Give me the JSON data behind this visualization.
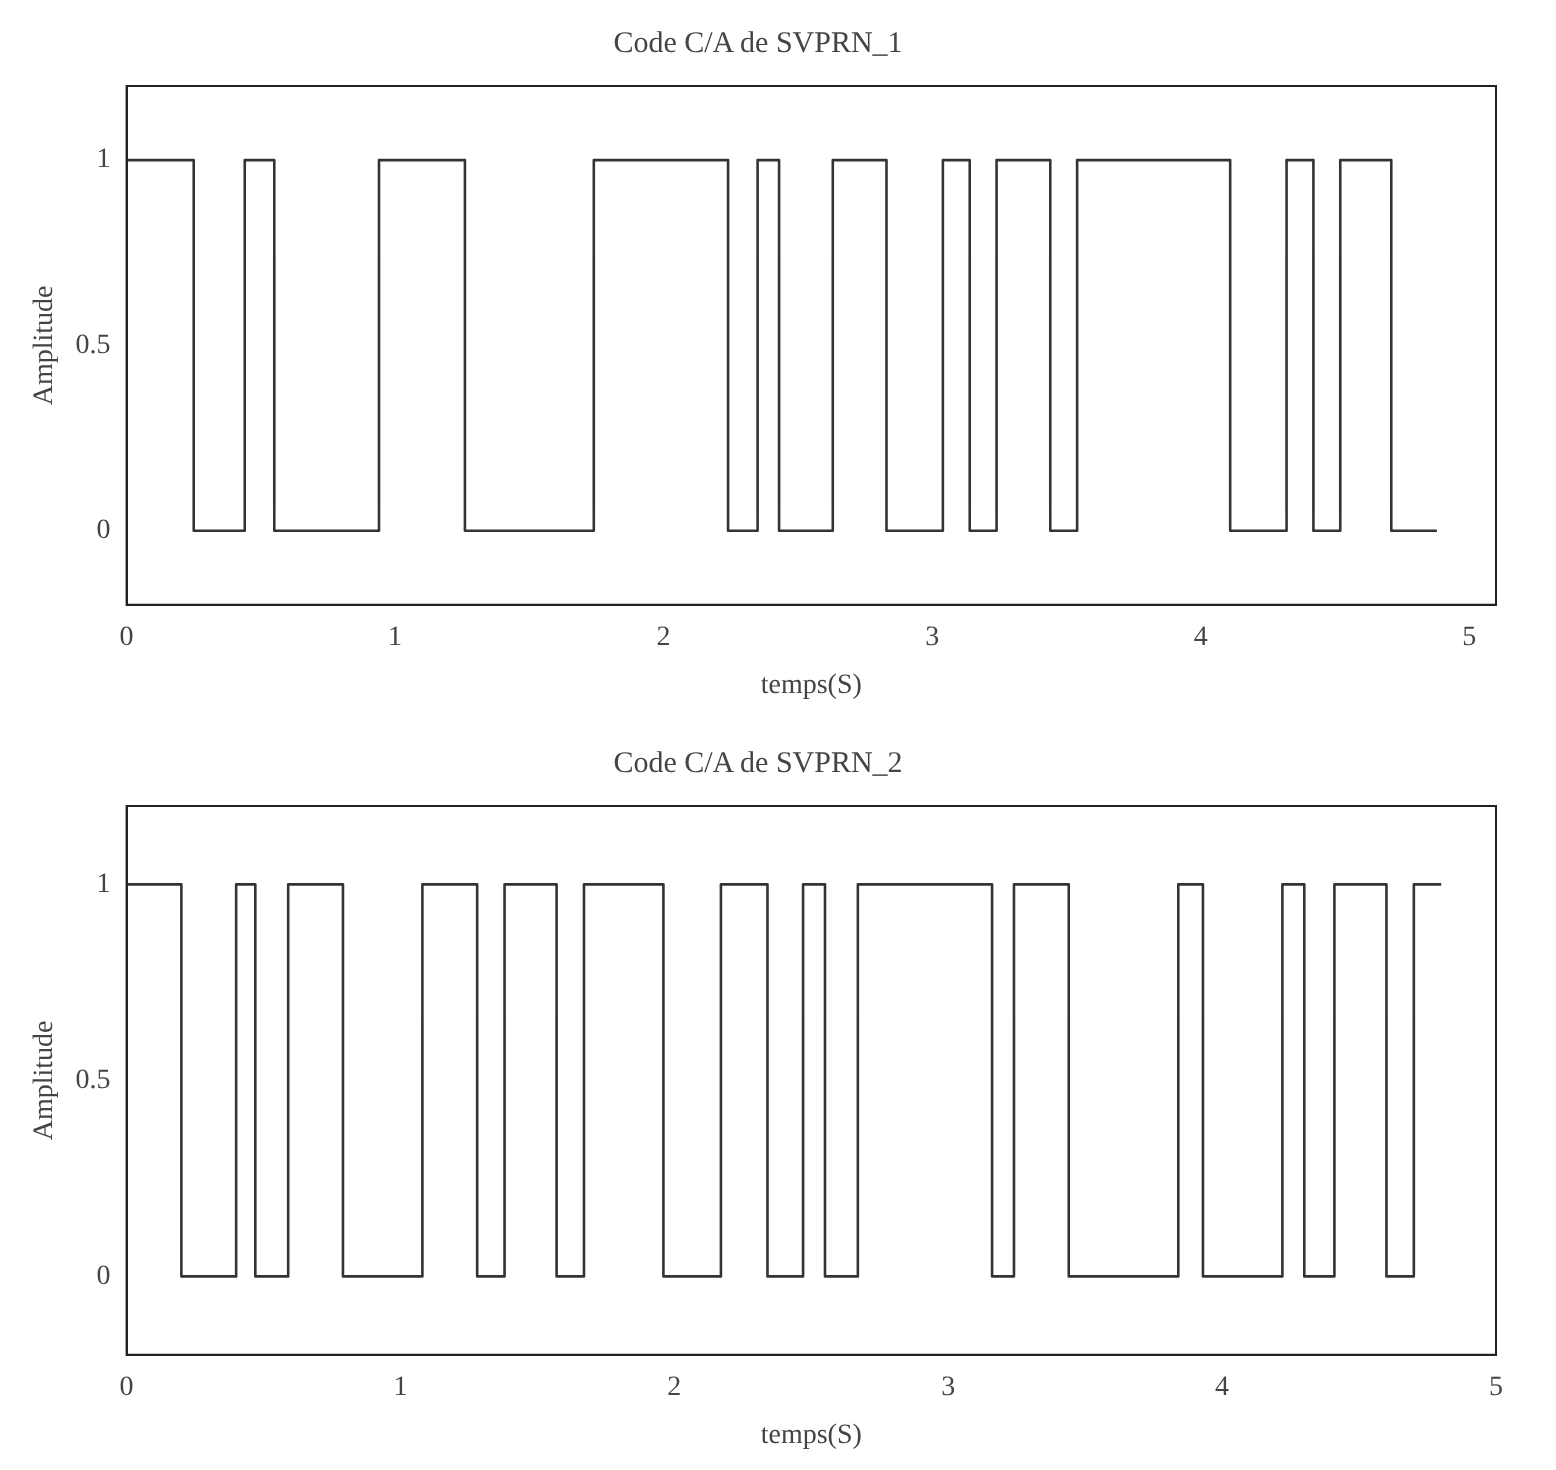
{
  "chart_data": [
    {
      "type": "step",
      "title": "Code C/A de SVPRN_1",
      "xlabel": "temps(S)",
      "ylabel": "Amplitude",
      "color": "#333333",
      "x": [
        0,
        0.25,
        0.44,
        0.55,
        0.94,
        1.26,
        1.74,
        2.24,
        2.35,
        2.43,
        2.63,
        2.83,
        3.04,
        3.14,
        3.24,
        3.44,
        3.54,
        4.11,
        4.32,
        4.42,
        4.52,
        4.71,
        4.88
      ],
      "values": [
        1,
        0,
        1,
        0,
        1,
        0,
        1,
        0,
        1,
        0,
        1,
        0,
        1,
        0,
        1,
        0,
        1,
        0,
        1,
        0,
        1,
        0,
        0
      ],
      "xlim": [
        0,
        5.1
      ],
      "xticks": [
        0,
        1,
        2,
        3,
        4,
        5
      ],
      "ylim": [
        -0.2,
        1.2
      ],
      "yticks": [
        0,
        0.5,
        1
      ],
      "grid": false
    },
    {
      "type": "step",
      "title": "Code C/A de SVPRN_2",
      "xlabel": "temps(S)",
      "ylabel": "Amplitude",
      "color": "#333333",
      "x": [
        0,
        0.2,
        0.4,
        0.47,
        0.59,
        0.79,
        1.08,
        1.28,
        1.38,
        1.57,
        1.67,
        1.96,
        2.17,
        2.34,
        2.47,
        2.55,
        2.67,
        3.16,
        3.24,
        3.44,
        3.84,
        3.93,
        4.22,
        4.3,
        4.41,
        4.6,
        4.7,
        4.8
      ],
      "values": [
        1,
        0,
        1,
        0,
        1,
        0,
        1,
        0,
        1,
        0,
        1,
        0,
        1,
        0,
        1,
        0,
        1,
        0,
        1,
        0,
        1,
        0,
        1,
        0,
        1,
        0,
        1,
        1
      ],
      "xlim": [
        0,
        5
      ],
      "xticks": [
        0,
        1,
        2,
        3,
        4,
        5
      ],
      "ylim": [
        -0.2,
        1.2
      ],
      "yticks": [
        0,
        0.5,
        1
      ],
      "grid": false
    }
  ]
}
